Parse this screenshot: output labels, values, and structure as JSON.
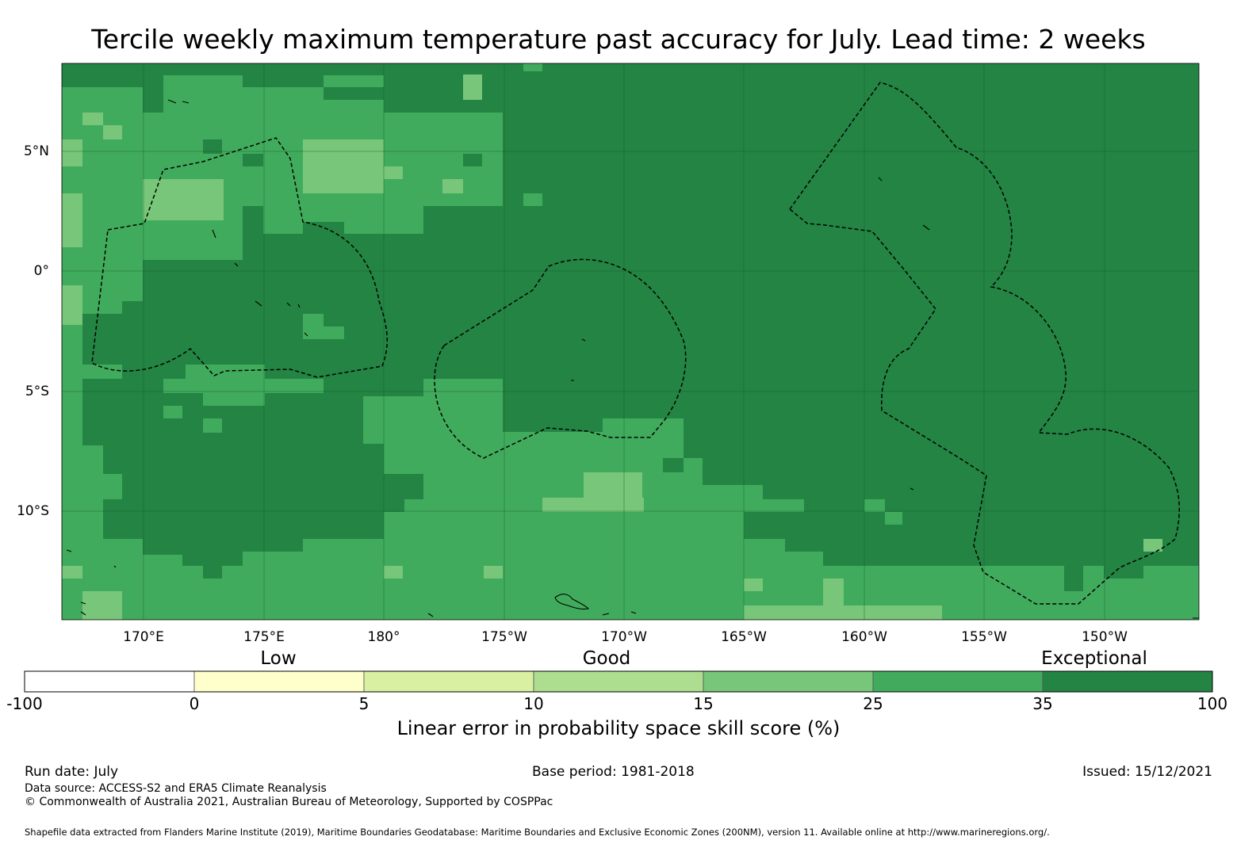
{
  "title": "Tercile weekly maximum temperature past accuracy for July. Lead time: 2 weeks",
  "map": {
    "lat_ticks": [
      "5°N",
      "0°",
      "5°S",
      "10°S"
    ],
    "lon_ticks": [
      "170°E",
      "175°E",
      "180°",
      "175°W",
      "170°W",
      "165°W",
      "160°W",
      "155°W",
      "150°W"
    ],
    "colors": {
      "level_35_100": "#238443",
      "level_25_35": "#41ab5d",
      "level_15_25": "#78c679",
      "level_10_15": "#addd8e",
      "land": "#000000"
    }
  },
  "legend": {
    "categories": [
      "Low",
      "Good",
      "Exceptional"
    ],
    "ticks": [
      "-100",
      "0",
      "5",
      "10",
      "15",
      "25",
      "35",
      "100"
    ],
    "bins": [
      {
        "from": -100,
        "to": 0,
        "color": "#ffffff"
      },
      {
        "from": 0,
        "to": 5,
        "color": "#ffffcc"
      },
      {
        "from": 5,
        "to": 10,
        "color": "#d9f0a3"
      },
      {
        "from": 10,
        "to": 15,
        "color": "#addd8e"
      },
      {
        "from": 15,
        "to": 25,
        "color": "#78c679"
      },
      {
        "from": 25,
        "to": 35,
        "color": "#41ab5d"
      },
      {
        "from": 35,
        "to": 100,
        "color": "#238443"
      }
    ],
    "label": "Linear error in probability space skill score (%)"
  },
  "footer": {
    "run_date": "Run date: July",
    "base_period": "Base period: 1981-2018",
    "issued": "Issued: 15/12/2021",
    "data_source": "Data source: ACCESS-S2 and ERA5 Climate Reanalysis",
    "copyright": "© Commonwealth of Australia 2021, Australian Bureau of Meteorology, Supported by COSPPac",
    "shapefile": "Shapefile data extracted from Flanders Marine Institute (2019), Maritime Boundaries Geodatabase: Maritime Boundaries and Exclusive Economic Zones (200NM), version 11. Available online at http://www.marineregions.org/."
  }
}
